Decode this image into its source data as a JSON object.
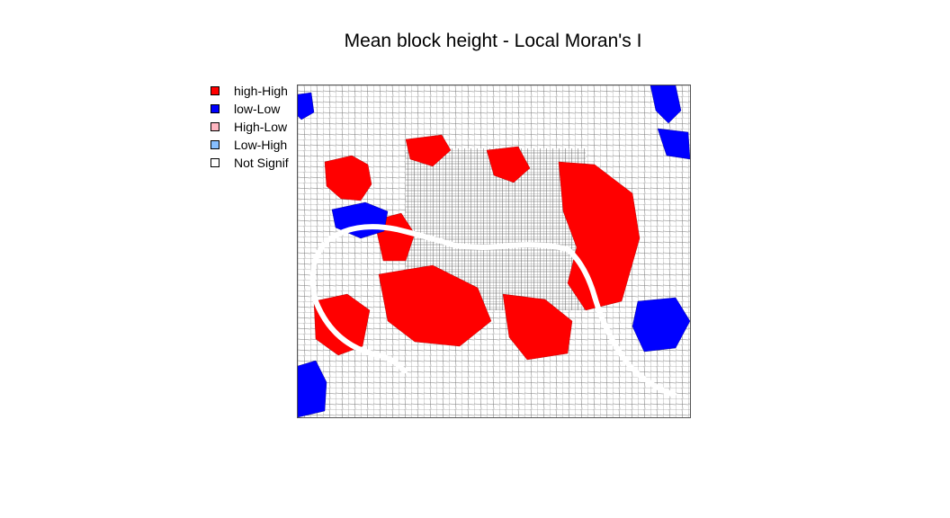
{
  "title": "Mean block height - Local Moran's I",
  "legend": [
    {
      "label": "high-High",
      "color": "#ff0000"
    },
    {
      "label": "low-Low",
      "color": "#0000ff"
    },
    {
      "label": "High-Low",
      "color": "#ffb6c1"
    },
    {
      "label": "Low-High",
      "color": "#87bfff"
    },
    {
      "label": "Not Signif",
      "color": "#ffffff"
    }
  ],
  "colors": {
    "high_high": "#ff0000",
    "low_low": "#0000ff",
    "block_outline": "#666666",
    "river": "#ffffff"
  }
}
